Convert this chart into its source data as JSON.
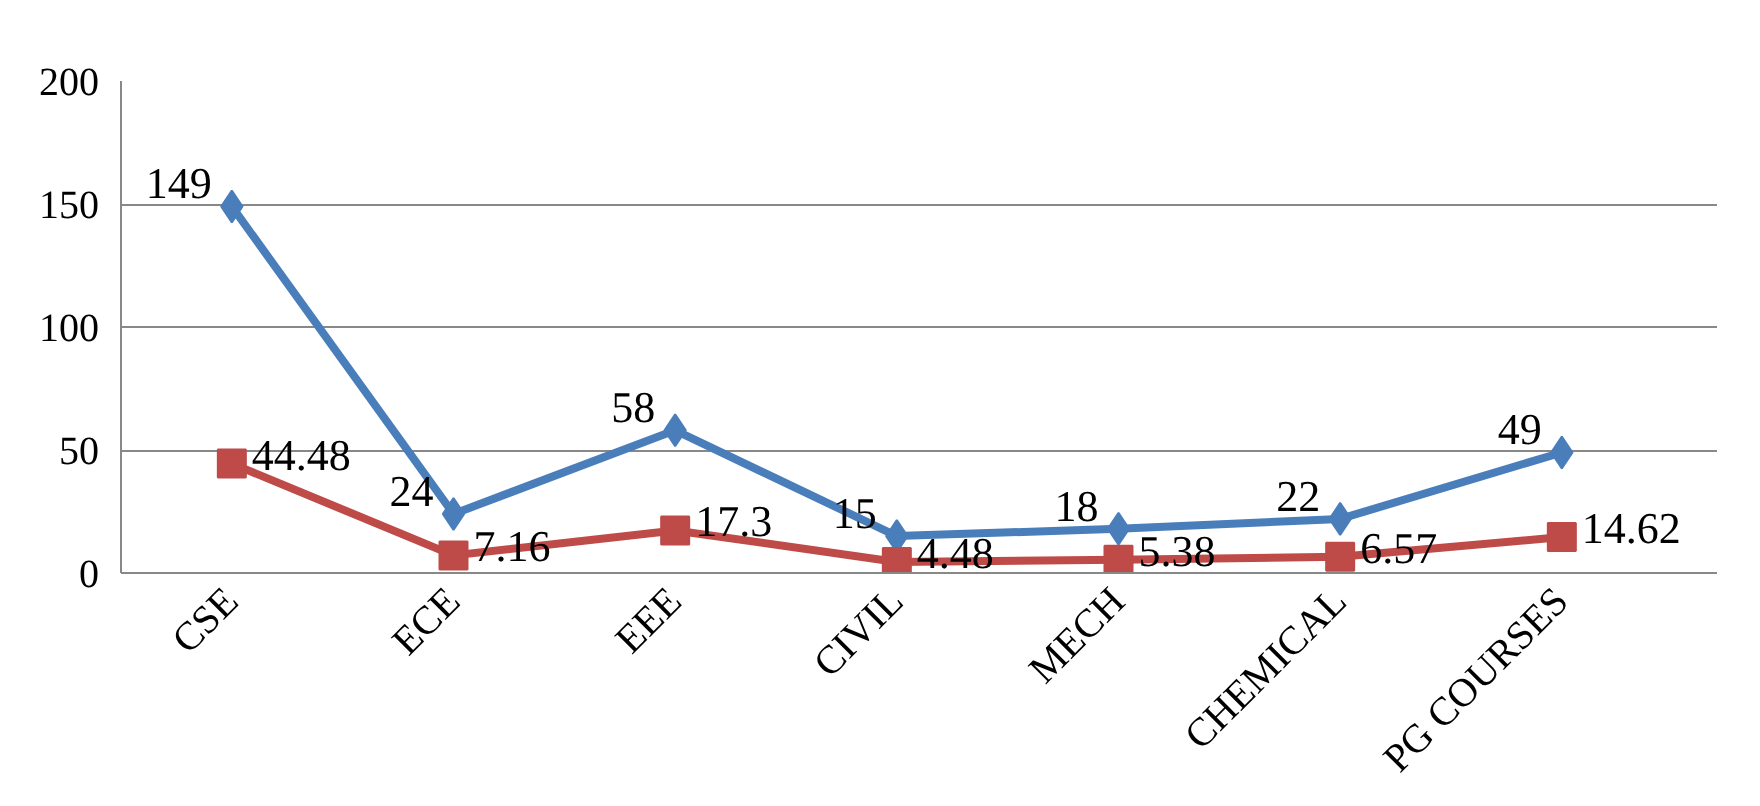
{
  "chart_data": {
    "type": "line",
    "categories": [
      "CSE",
      "ECE",
      "EEE",
      "CIVIL",
      "MECH",
      "CHEMICAL",
      "PG COURSES"
    ],
    "series": [
      {
        "color": "#4a7ebb",
        "marker": "diamond",
        "values": [
          149,
          24,
          58,
          15,
          18,
          22,
          49
        ]
      },
      {
        "color": "#be4b48",
        "marker": "square",
        "values": [
          44.48,
          7.16,
          17.3,
          4.48,
          5.38,
          6.57,
          14.62
        ]
      }
    ],
    "ylim": [
      0,
      200
    ],
    "yticks": [
      0,
      50,
      100,
      150,
      200
    ],
    "grid": "y",
    "data_labels": true
  }
}
